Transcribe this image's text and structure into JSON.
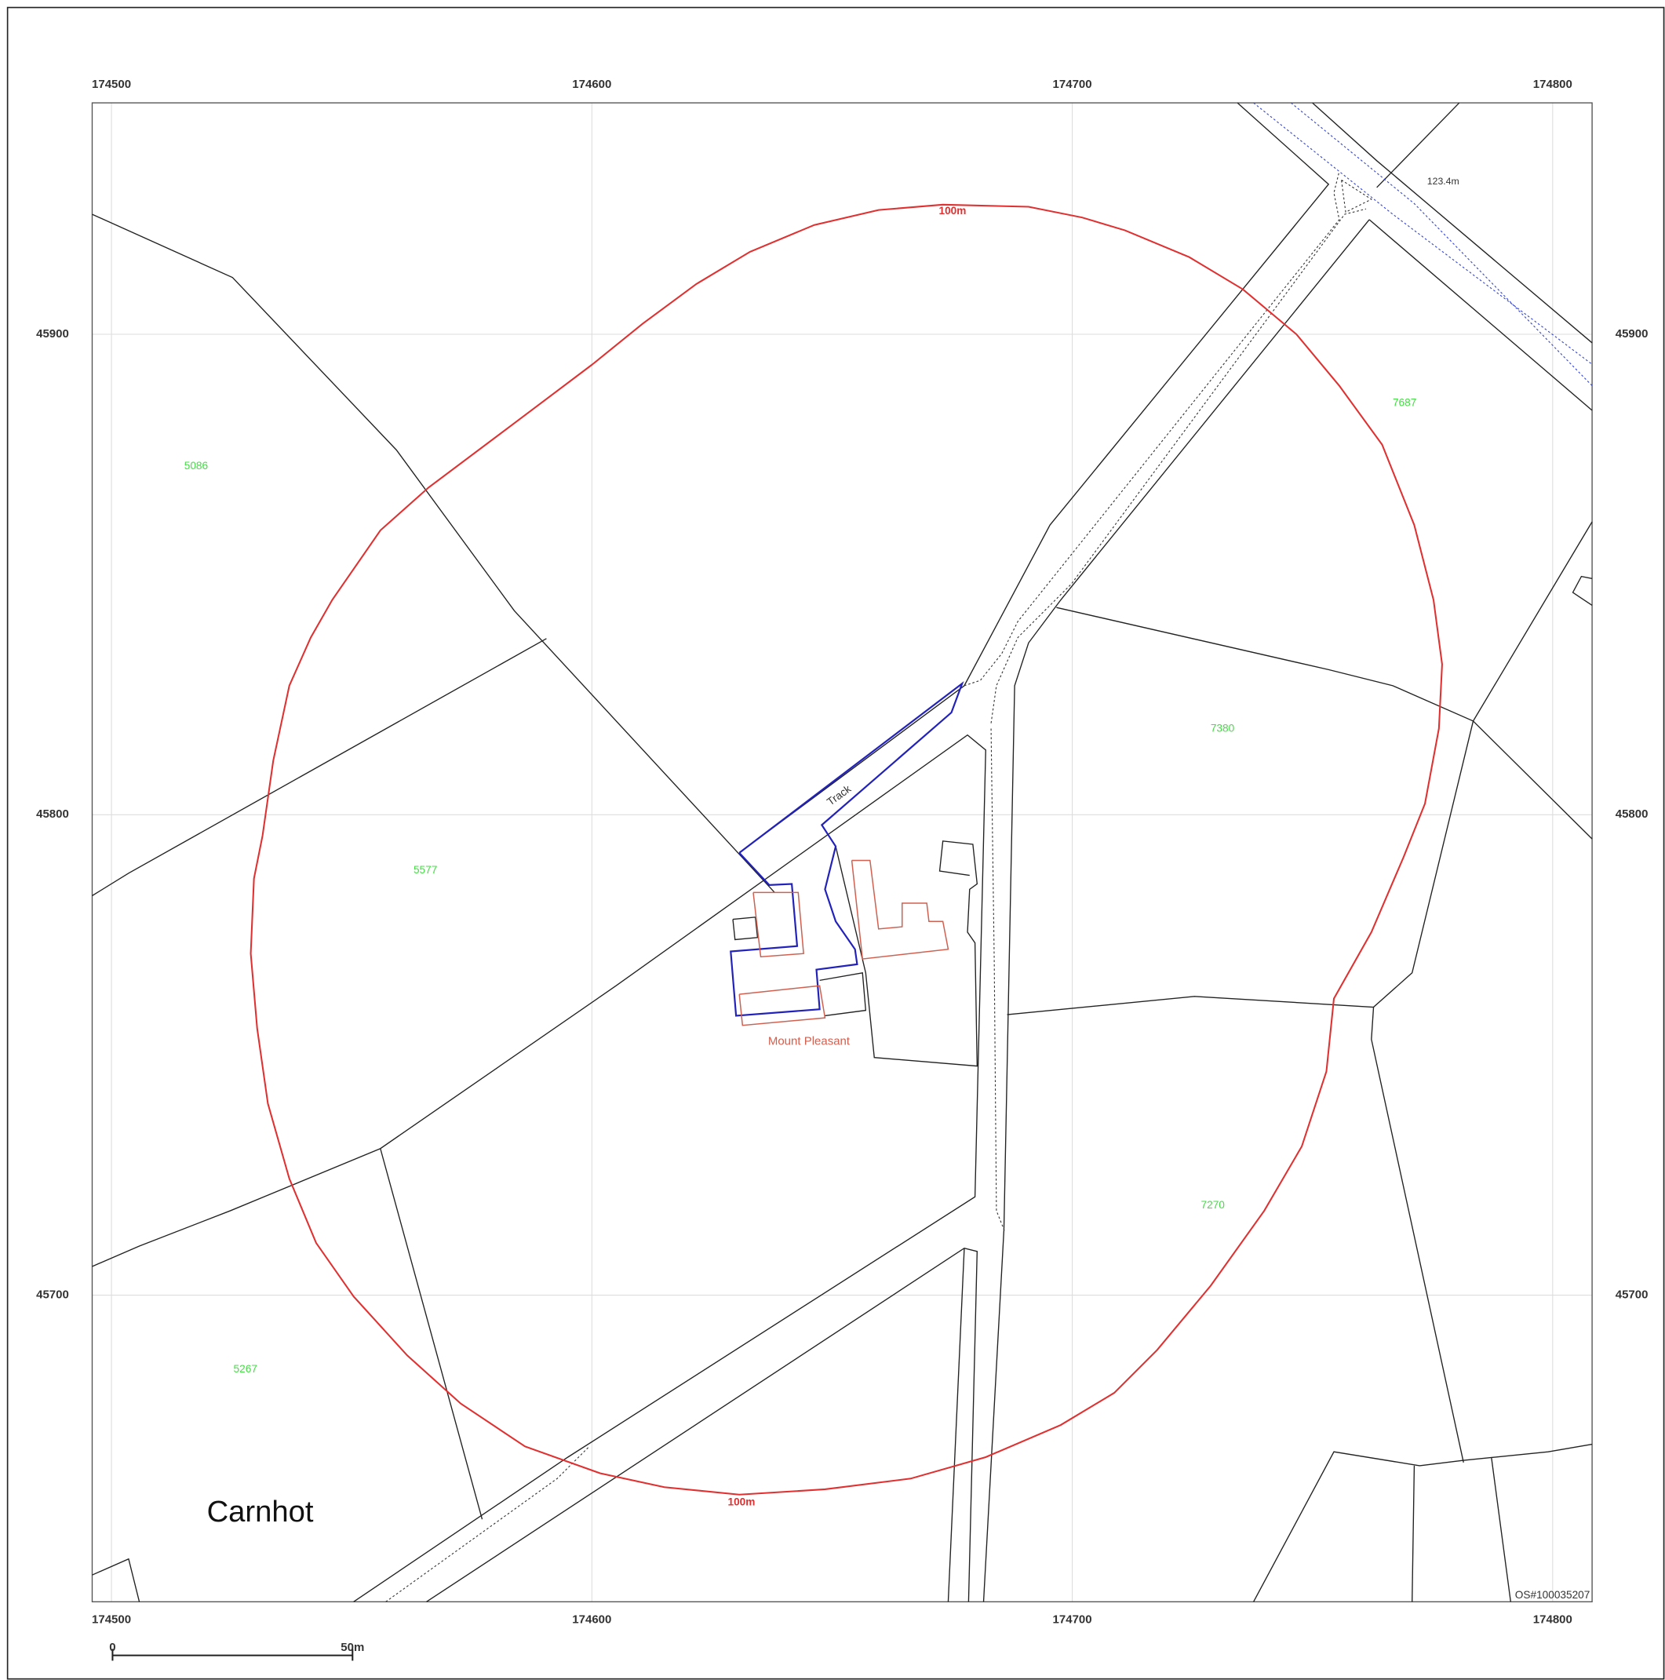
{
  "map": {
    "easting_ticks": [
      174500,
      174600,
      174700,
      174800
    ],
    "northing_ticks": [
      45900,
      45800,
      45700
    ],
    "parcels": [
      "5086",
      "5577",
      "5267",
      "7687",
      "7380",
      "7270"
    ],
    "buffer_labels": [
      "100m",
      "100m"
    ],
    "spot_height": "123.4m",
    "track_label": "Track",
    "property_label": "Mount Pleasant",
    "place_label": "Carnhot",
    "copyright": "OS#100035207",
    "scale_bar": {
      "start": 0,
      "end": "50m"
    }
  }
}
